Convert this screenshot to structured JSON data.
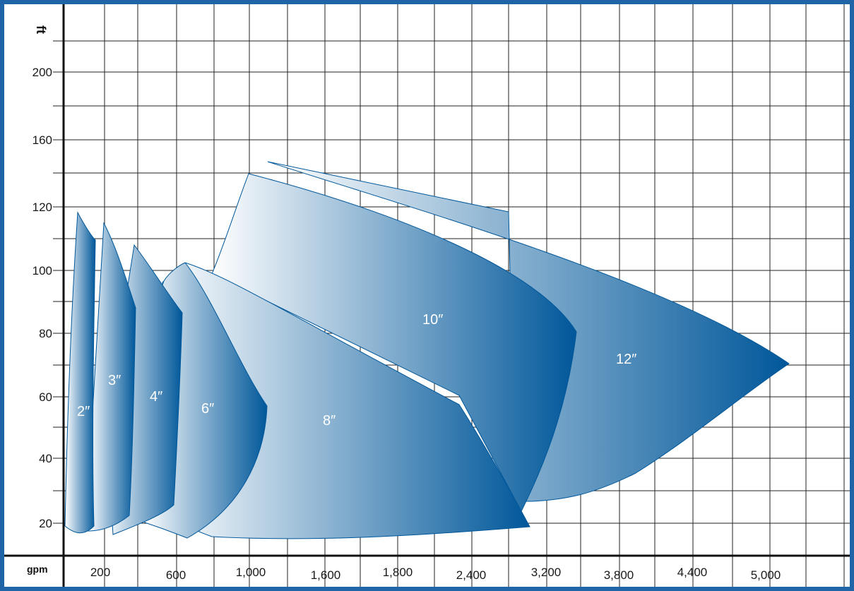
{
  "chart_data": {
    "type": "area",
    "xlabel": "gpm",
    "ylabel": "ft",
    "x_tick_labels": [
      "200",
      "600",
      "1,000",
      "1,600",
      "1,800",
      "2,400",
      "3,200",
      "3,800",
      "4,400",
      "5,000"
    ],
    "y_tick_labels": [
      "20",
      "40",
      "60",
      "80",
      "100",
      "120",
      "160",
      "200"
    ],
    "grid": true,
    "series": [
      {
        "name": "2″",
        "label": "2″",
        "gpm_range": [
          0,
          200
        ],
        "head_range_ft": [
          20,
          117
        ]
      },
      {
        "name": "3″",
        "label": "3″",
        "gpm_range": [
          200,
          400
        ],
        "head_range_ft": [
          18,
          114
        ]
      },
      {
        "name": "4″",
        "label": "4″",
        "gpm_range": [
          250,
          600
        ],
        "head_range_ft": [
          17,
          108
        ]
      },
      {
        "name": "6″",
        "label": "6″",
        "gpm_range": [
          400,
          1050
        ],
        "head_range_ft": [
          15,
          102
        ]
      },
      {
        "name": "8″",
        "label": "8″",
        "gpm_range": [
          800,
          3100
        ],
        "head_range_ft": [
          15,
          140
        ]
      },
      {
        "name": "10″",
        "label": "10″",
        "gpm_range": [
          1000,
          3500
        ],
        "head_range_ft": [
          24,
          140
        ]
      },
      {
        "name": "12″",
        "label": "12″",
        "gpm_range": [
          3000,
          5100
        ],
        "head_range_ft": [
          27,
          145
        ]
      }
    ]
  },
  "colors": {
    "frame": "#1e64a6",
    "fill_dark": "#00579a",
    "fill_light": "#ffffff",
    "grid": "#222222"
  }
}
